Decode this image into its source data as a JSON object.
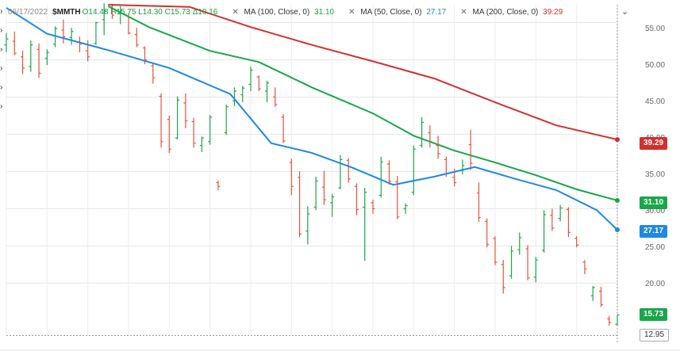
{
  "legend": {
    "date": "06/17/2022",
    "symbol": "$MMTH",
    "ohlc": "O14.48 H15.75 L14.30 C15.73 Δ10.16",
    "ma": [
      {
        "label": "MA (100, Close, 0)",
        "value": "31.10",
        "color": "#1aa64a"
      },
      {
        "label": "MA (50, Close, 0)",
        "value": "27.17",
        "color": "#1e88e5"
      },
      {
        "label": "MA (200, Close, 0)",
        "value": "39.29",
        "color": "#d32f2f"
      }
    ]
  },
  "badges": {
    "ma200": "39.29",
    "ma100": "31.10",
    "ma50": "27.17",
    "last": "15.73",
    "low": "12.95"
  },
  "colors": {
    "up": "#1aa64a",
    "down": "#e5533d",
    "ma100": "#1aa64a",
    "ma50": "#1e88e5",
    "ma200": "#d32f2f"
  },
  "chart_data": {
    "type": "line",
    "title": "",
    "ylim": [
      12.9,
      57.4
    ],
    "y_ticks": [
      "55.00",
      "50.00",
      "45.00",
      "40.00",
      "35.00",
      "30.00",
      "25.00",
      "20.00"
    ],
    "x_range": [
      0,
      150
    ],
    "series": [
      {
        "name": "MA (200, Close, 0)",
        "color": "#d32f2f",
        "x": [
          25,
          45,
          60,
          75,
          90,
          105,
          120,
          135,
          150
        ],
        "values": [
          60.2,
          57.1,
          54.4,
          52.0,
          49.8,
          47.5,
          44.3,
          41.2,
          39.29
        ]
      },
      {
        "name": "MA (100, Close, 0)",
        "color": "#1aa64a",
        "x": [
          25,
          35,
          50,
          62,
          75,
          90,
          100,
          110,
          120,
          130,
          140,
          150
        ],
        "values": [
          57.2,
          54.4,
          51.2,
          49.7,
          46.3,
          42.8,
          39.8,
          37.8,
          36.2,
          34.5,
          32.6,
          31.1
        ]
      },
      {
        "name": "MA (50, Close, 0)",
        "color": "#1e88e5",
        "x": [
          0,
          10,
          25,
          40,
          55,
          65,
          75,
          85,
          95,
          105,
          115,
          125,
          135,
          145,
          150
        ],
        "values": [
          57.0,
          53.5,
          51.3,
          48.9,
          45.4,
          38.8,
          37.5,
          35.5,
          33.2,
          34.3,
          35.6,
          34.0,
          32.5,
          29.8,
          27.17
        ]
      }
    ],
    "candles": [
      [
        0,
        52.0,
        53.6,
        51.0,
        52.8
      ],
      [
        2,
        52.5,
        53.8,
        50.6,
        50.9
      ],
      [
        4,
        50.4,
        51.2,
        48.1,
        48.9
      ],
      [
        6,
        49.1,
        52.6,
        48.4,
        52.0
      ],
      [
        8,
        51.4,
        52.2,
        47.6,
        48.2
      ],
      [
        10,
        50.2,
        51.4,
        49.3,
        51.0
      ],
      [
        12,
        52.1,
        54.5,
        51.7,
        54.2
      ],
      [
        14,
        54.0,
        55.4,
        52.2,
        53.1
      ],
      [
        16,
        53.0,
        54.3,
        52.0,
        53.8
      ],
      [
        18,
        52.4,
        53.1,
        51.0,
        52.1
      ],
      [
        20,
        51.2,
        52.6,
        49.8,
        50.4
      ],
      [
        22,
        52.2,
        55.1,
        52.0,
        55.0
      ],
      [
        24,
        55.4,
        57.6,
        53.3,
        56.6
      ],
      [
        26,
        57.1,
        57.5,
        55.5,
        56.0
      ],
      [
        28,
        56.2,
        57.2,
        54.8,
        56.6
      ],
      [
        30,
        55.9,
        56.2,
        53.4,
        53.6
      ],
      [
        32,
        53.4,
        54.3,
        51.7,
        52.0
      ],
      [
        34,
        51.6,
        51.8,
        49.4,
        50.0
      ],
      [
        36,
        49.2,
        49.6,
        46.8,
        47.6
      ],
      [
        38,
        45.1,
        45.5,
        38.2,
        39.0
      ],
      [
        40,
        42.0,
        42.5,
        37.5,
        38.0
      ],
      [
        42,
        39.5,
        45.1,
        39.3,
        44.6
      ],
      [
        44,
        44.2,
        45.5,
        40.8,
        41.8
      ],
      [
        46,
        41.7,
        42.2,
        38.2,
        38.8
      ],
      [
        48,
        38.5,
        39.7,
        37.6,
        39.5
      ],
      [
        50,
        39.0,
        42.6,
        38.6,
        42.3
      ],
      [
        52,
        33.5,
        33.8,
        32.5,
        33.0
      ],
      [
        54,
        40.2,
        44.0,
        39.9,
        43.7
      ],
      [
        56,
        44.5,
        46.3,
        43.8,
        45.8
      ],
      [
        58,
        45.3,
        46.5,
        44.3,
        46.2
      ],
      [
        60,
        46.7,
        49.1,
        45.8,
        48.6
      ],
      [
        62,
        47.7,
        47.9,
        45.8,
        46.1
      ],
      [
        64,
        45.8,
        47.2,
        44.3,
        46.9
      ],
      [
        66,
        45.0,
        46.3,
        43.7,
        44.0
      ],
      [
        68,
        42.3,
        42.7,
        38.8,
        39.1
      ],
      [
        70,
        36.2,
        36.7,
        31.8,
        33.0
      ],
      [
        72,
        34.2,
        35.0,
        26.2,
        26.6
      ],
      [
        74,
        27.0,
        30.3,
        25.2,
        29.3
      ],
      [
        76,
        30.2,
        34.3,
        29.8,
        33.7
      ],
      [
        78,
        32.9,
        35.1,
        30.5,
        31.2
      ],
      [
        80,
        30.8,
        32.0,
        28.9,
        31.6
      ],
      [
        82,
        32.8,
        37.2,
        32.6,
        36.6
      ],
      [
        84,
        36.5,
        36.8,
        33.5,
        34.0
      ],
      [
        86,
        33.0,
        33.4,
        29.1,
        29.9
      ],
      [
        88,
        30.2,
        32.8,
        23.0,
        32.2
      ],
      [
        90,
        30.8,
        31.2,
        29.3,
        30.0
      ],
      [
        92,
        31.8,
        37.0,
        31.5,
        36.3
      ],
      [
        94,
        36.0,
        36.5,
        33.2,
        33.7
      ],
      [
        96,
        33.6,
        34.4,
        28.6,
        28.9
      ],
      [
        98,
        30.0,
        30.7,
        29.3,
        30.4
      ],
      [
        100,
        32.2,
        38.5,
        31.8,
        38.0
      ],
      [
        102,
        38.5,
        42.3,
        38.2,
        41.6
      ],
      [
        104,
        40.2,
        41.2,
        38.2,
        39.0
      ],
      [
        106,
        38.5,
        39.8,
        36.7,
        37.4
      ],
      [
        108,
        36.6,
        37.0,
        34.3,
        34.7
      ],
      [
        110,
        34.2,
        35.4,
        33.0,
        33.5
      ],
      [
        112,
        35.2,
        36.6,
        34.6,
        35.8
      ],
      [
        114,
        38.6,
        40.6,
        35.2,
        36.1
      ],
      [
        116,
        32.1,
        33.5,
        28.2,
        28.8
      ],
      [
        118,
        28.3,
        28.7,
        24.8,
        25.2
      ],
      [
        120,
        26.0,
        26.3,
        22.4,
        22.8
      ],
      [
        122,
        22.5,
        23.1,
        18.6,
        19.4
      ],
      [
        124,
        21.0,
        25.0,
        20.6,
        24.3
      ],
      [
        126,
        24.5,
        26.8,
        23.8,
        26.1
      ],
      [
        128,
        24.6,
        25.1,
        20.4,
        20.7
      ],
      [
        130,
        20.8,
        23.5,
        20.1,
        23.1
      ],
      [
        132,
        24.4,
        29.8,
        24.1,
        29.2
      ],
      [
        134,
        29.1,
        30.0,
        27.0,
        27.4
      ],
      [
        136,
        28.7,
        30.5,
        28.3,
        30.1
      ],
      [
        138,
        29.9,
        30.2,
        26.2,
        26.8
      ],
      [
        140,
        26.0,
        26.3,
        24.8,
        25.1
      ],
      [
        142,
        22.8,
        23.1,
        21.2,
        21.9
      ],
      [
        144,
        18.3,
        19.6,
        17.6,
        19.4
      ],
      [
        146,
        18.9,
        19.5,
        16.8,
        17.1
      ],
      [
        148,
        15.2,
        15.6,
        14.3,
        14.7
      ],
      [
        150,
        14.48,
        15.75,
        14.3,
        15.73
      ]
    ]
  }
}
